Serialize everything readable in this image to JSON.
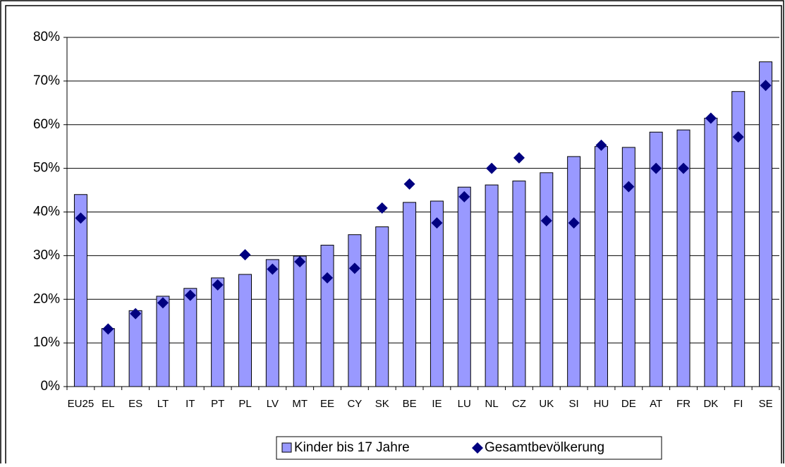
{
  "chart_data": {
    "type": "bar",
    "categories": [
      "EU25",
      "EL",
      "ES",
      "LT",
      "IT",
      "PT",
      "PL",
      "LV",
      "MT",
      "EE",
      "CY",
      "SK",
      "BE",
      "IE",
      "LU",
      "NL",
      "CZ",
      "UK",
      "SI",
      "HU",
      "DE",
      "AT",
      "FR",
      "DK",
      "FI",
      "SE"
    ],
    "series": [
      {
        "name": "Kinder bis 17 Jahre",
        "type": "bar",
        "color": "#9999ff",
        "values": [
          44,
          13.3,
          17.4,
          20.7,
          22.5,
          24.9,
          25.7,
          29.1,
          29.9,
          32.4,
          34.8,
          36.6,
          42.2,
          42.5,
          45.7,
          46.2,
          47.1,
          49,
          52.7,
          55,
          54.8,
          58.3,
          58.8,
          61.5,
          67.6,
          74.4
        ]
      },
      {
        "name": "Gesamtbevölkerung",
        "type": "scatter",
        "color": "#000080",
        "values": [
          38.6,
          13.2,
          16.7,
          19.2,
          20.9,
          23.3,
          30.2,
          26.9,
          28.6,
          24.9,
          27.1,
          40.9,
          46.4,
          37.5,
          43.5,
          50,
          52.4,
          38,
          37.5,
          55.3,
          45.8,
          50,
          50,
          61.5,
          57.2,
          69
        ]
      }
    ],
    "ylim": [
      0,
      80
    ],
    "yticks": [
      {
        "value": 0,
        "label": "0%"
      },
      {
        "value": 10,
        "label": "10%"
      },
      {
        "value": 20,
        "label": "20%"
      },
      {
        "value": 30,
        "label": "30%"
      },
      {
        "value": 40,
        "label": "40%"
      },
      {
        "value": 50,
        "label": "50%"
      },
      {
        "value": 60,
        "label": "60%"
      },
      {
        "value": 70,
        "label": "70%"
      },
      {
        "value": 80,
        "label": "80%"
      }
    ],
    "grid": true,
    "legend": "bottom"
  }
}
